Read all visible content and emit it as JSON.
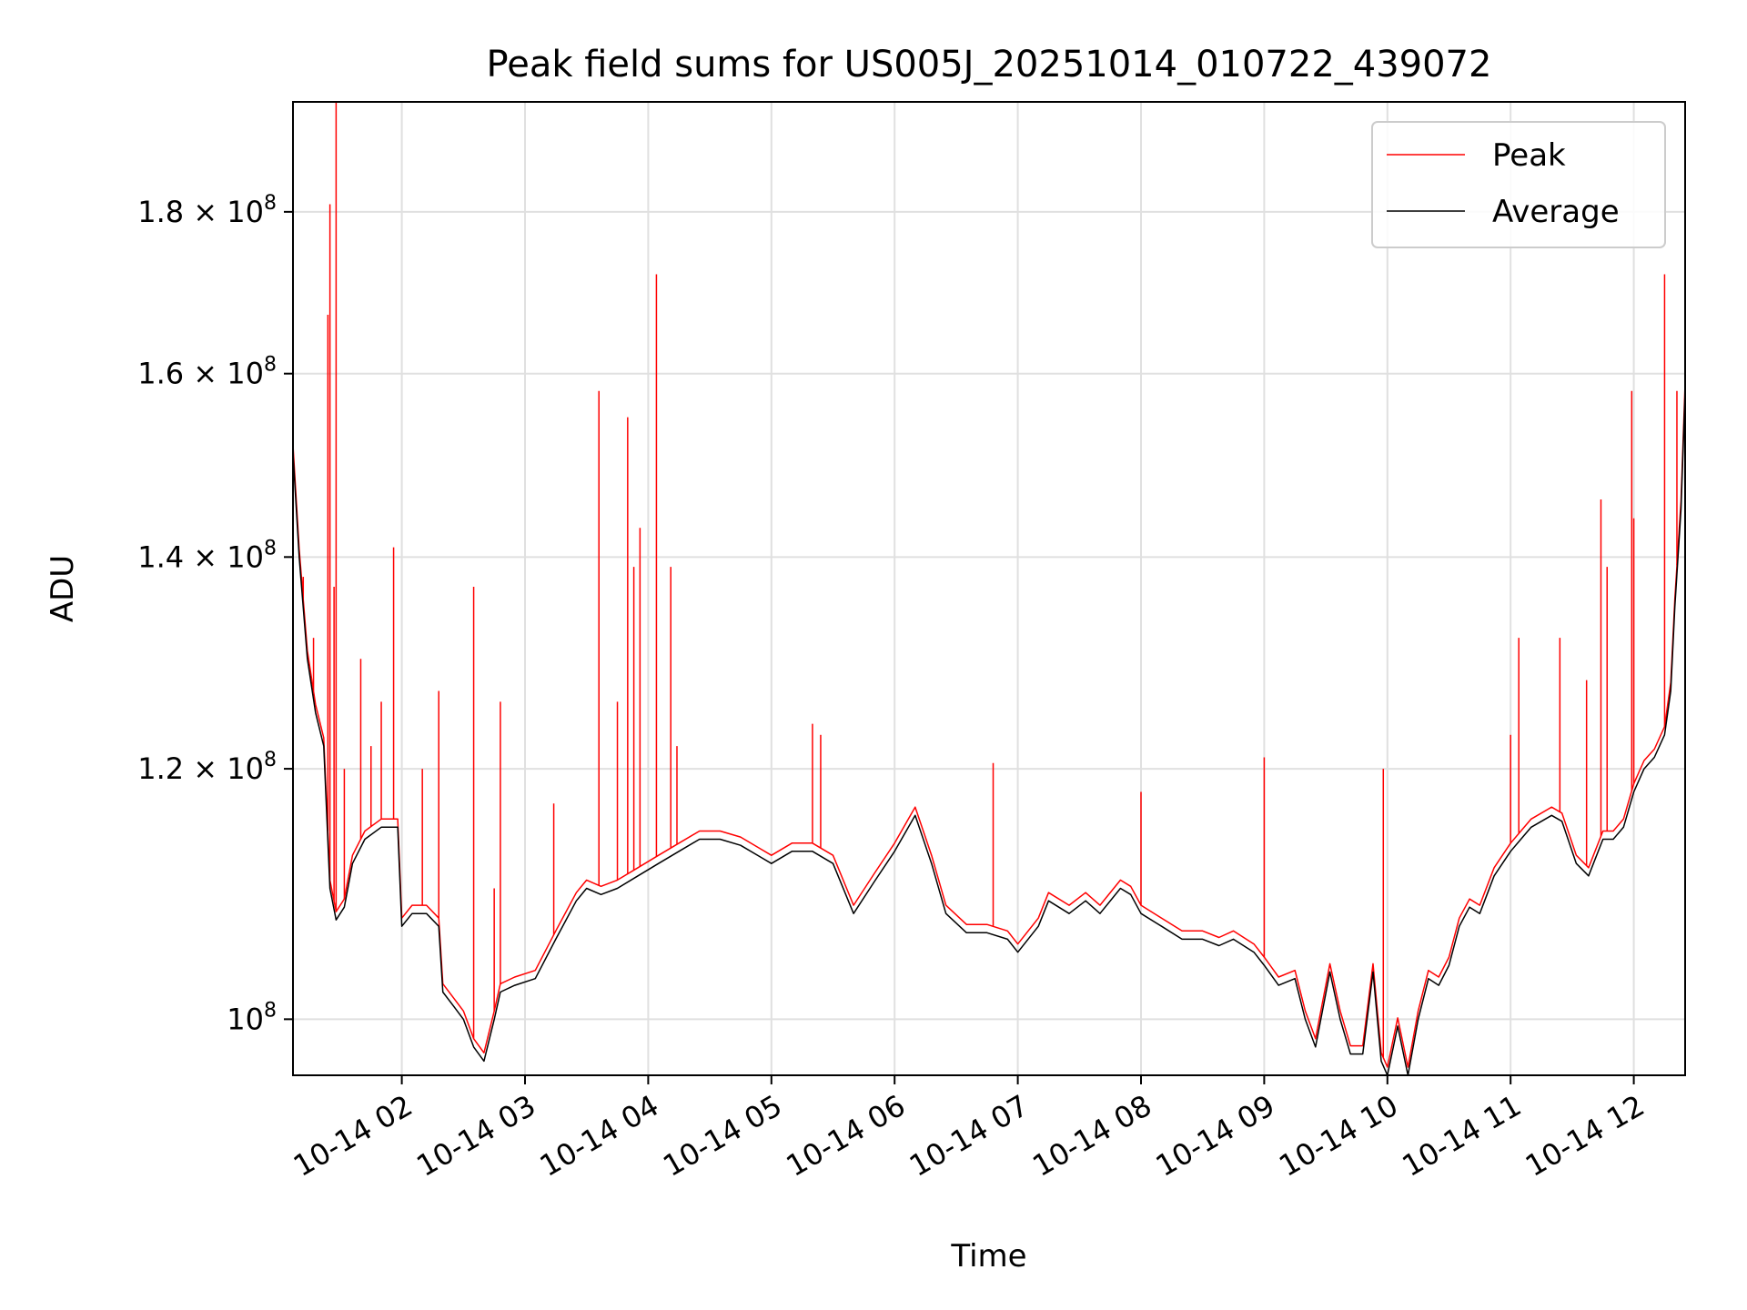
{
  "chart_data": {
    "type": "line",
    "title": "Peak field sums for US005J_20251014_010722_439072",
    "xlabel": "Time",
    "ylabel": "ADU",
    "x_range": [
      "2025-10-14T01:07",
      "2025-10-14T12:25"
    ],
    "ylim": [
      96000000,
      195000000
    ],
    "y_scale": "log",
    "grid": true,
    "legend": "top-right",
    "x_ticks": [
      {
        "t": "2025-10-14T02:00",
        "label": "10-14 02"
      },
      {
        "t": "2025-10-14T03:00",
        "label": "10-14 03"
      },
      {
        "t": "2025-10-14T04:00",
        "label": "10-14 04"
      },
      {
        "t": "2025-10-14T05:00",
        "label": "10-14 05"
      },
      {
        "t": "2025-10-14T06:00",
        "label": "10-14 06"
      },
      {
        "t": "2025-10-14T07:00",
        "label": "10-14 07"
      },
      {
        "t": "2025-10-14T08:00",
        "label": "10-14 08"
      },
      {
        "t": "2025-10-14T09:00",
        "label": "10-14 09"
      },
      {
        "t": "2025-10-14T10:00",
        "label": "10-14 10"
      },
      {
        "t": "2025-10-14T11:00",
        "label": "10-14 11"
      },
      {
        "t": "2025-10-14T12:00",
        "label": "10-14 12"
      }
    ],
    "y_ticks": [
      {
        "v": 100000000,
        "base": "10",
        "exp": "8",
        "mant": ""
      },
      {
        "v": 120000000,
        "base": "10",
        "exp": "8",
        "mant": "1.2"
      },
      {
        "v": 140000000,
        "base": "10",
        "exp": "8",
        "mant": "1.4"
      },
      {
        "v": 160000000,
        "base": "10",
        "exp": "8",
        "mant": "1.6"
      },
      {
        "v": 180000000,
        "base": "10",
        "exp": "8",
        "mant": "1.8"
      }
    ],
    "series": [
      {
        "name": "Average",
        "color": "#000000",
        "points": [
          [
            "2025-10-14T01:07",
            151000000.0
          ],
          [
            "2025-10-14T01:10",
            140000000.0
          ],
          [
            "2025-10-14T01:14",
            130000000.0
          ],
          [
            "2025-10-14T01:18",
            125000000.0
          ],
          [
            "2025-10-14T01:22",
            122000000.0
          ],
          [
            "2025-10-14T01:25",
            110000000.0
          ],
          [
            "2025-10-14T01:28",
            107500000.0
          ],
          [
            "2025-10-14T01:32",
            108500000.0
          ],
          [
            "2025-10-14T01:36",
            112000000.0
          ],
          [
            "2025-10-14T01:42",
            114000000.0
          ],
          [
            "2025-10-14T01:50",
            115000000.0
          ],
          [
            "2025-10-14T01:55",
            115000000.0
          ],
          [
            "2025-10-14T01:58",
            115000000.0
          ],
          [
            "2025-10-14T02:00",
            107000000.0
          ],
          [
            "2025-10-14T02:05",
            108000000.0
          ],
          [
            "2025-10-14T02:12",
            108000000.0
          ],
          [
            "2025-10-14T02:18",
            107000000.0
          ],
          [
            "2025-10-14T02:20",
            102000000.0
          ],
          [
            "2025-10-14T02:25",
            101000000.0
          ],
          [
            "2025-10-14T02:30",
            100000000.0
          ],
          [
            "2025-10-14T02:35",
            98000000.0
          ],
          [
            "2025-10-14T02:40",
            97000000.0
          ],
          [
            "2025-10-14T02:45",
            100000000.0
          ],
          [
            "2025-10-14T02:48",
            102000000.0
          ],
          [
            "2025-10-14T02:55",
            102500000.0
          ],
          [
            "2025-10-14T03:05",
            103000000.0
          ],
          [
            "2025-10-14T03:15",
            106000000.0
          ],
          [
            "2025-10-14T03:25",
            109000000.0
          ],
          [
            "2025-10-14T03:30",
            110000000.0
          ],
          [
            "2025-10-14T03:37",
            109500000.0
          ],
          [
            "2025-10-14T03:45",
            110000000.0
          ],
          [
            "2025-10-14T03:55",
            111000000.0
          ],
          [
            "2025-10-14T04:05",
            112000000.0
          ],
          [
            "2025-10-14T04:15",
            113000000.0
          ],
          [
            "2025-10-14T04:25",
            114000000.0
          ],
          [
            "2025-10-14T04:35",
            114000000.0
          ],
          [
            "2025-10-14T04:45",
            113500000.0
          ],
          [
            "2025-10-14T04:55",
            112500000.0
          ],
          [
            "2025-10-14T05:00",
            112000000.0
          ],
          [
            "2025-10-14T05:10",
            113000000.0
          ],
          [
            "2025-10-14T05:20",
            113000000.0
          ],
          [
            "2025-10-14T05:30",
            112000000.0
          ],
          [
            "2025-10-14T05:40",
            108000000.0
          ],
          [
            "2025-10-14T05:50",
            110500000.0
          ],
          [
            "2025-10-14T06:00",
            113000000.0
          ],
          [
            "2025-10-14T06:10",
            116000000.0
          ],
          [
            "2025-10-14T06:18",
            112000000.0
          ],
          [
            "2025-10-14T06:25",
            108000000.0
          ],
          [
            "2025-10-14T06:35",
            106500000.0
          ],
          [
            "2025-10-14T06:45",
            106500000.0
          ],
          [
            "2025-10-14T06:55",
            106000000.0
          ],
          [
            "2025-10-14T07:00",
            105000000.0
          ],
          [
            "2025-10-14T07:10",
            107000000.0
          ],
          [
            "2025-10-14T07:15",
            109000000.0
          ],
          [
            "2025-10-14T07:25",
            108000000.0
          ],
          [
            "2025-10-14T07:33",
            109000000.0
          ],
          [
            "2025-10-14T07:40",
            108000000.0
          ],
          [
            "2025-10-14T07:50",
            110000000.0
          ],
          [
            "2025-10-14T07:55",
            109500000.0
          ],
          [
            "2025-10-14T08:00",
            108000000.0
          ],
          [
            "2025-10-14T08:10",
            107000000.0
          ],
          [
            "2025-10-14T08:20",
            106000000.0
          ],
          [
            "2025-10-14T08:30",
            106000000.0
          ],
          [
            "2025-10-14T08:38",
            105500000.0
          ],
          [
            "2025-10-14T08:45",
            106000000.0
          ],
          [
            "2025-10-14T08:55",
            105000000.0
          ],
          [
            "2025-10-14T09:00",
            104000000.0
          ],
          [
            "2025-10-14T09:07",
            102500000.0
          ],
          [
            "2025-10-14T09:15",
            103000000.0
          ],
          [
            "2025-10-14T09:20",
            100000000.0
          ],
          [
            "2025-10-14T09:25",
            98000000.0
          ],
          [
            "2025-10-14T09:32",
            103500000.0
          ],
          [
            "2025-10-14T09:37",
            100000000.0
          ],
          [
            "2025-10-14T09:42",
            97500000.0
          ],
          [
            "2025-10-14T09:48",
            97500000.0
          ],
          [
            "2025-10-14T09:53",
            103500000.0
          ],
          [
            "2025-10-14T09:57",
            97000000.0
          ],
          [
            "2025-10-14T10:00",
            96000000.0
          ],
          [
            "2025-10-14T10:05",
            99500000.0
          ],
          [
            "2025-10-14T10:10",
            96000000.0
          ],
          [
            "2025-10-14T10:15",
            100000000.0
          ],
          [
            "2025-10-14T10:20",
            103000000.0
          ],
          [
            "2025-10-14T10:25",
            102500000.0
          ],
          [
            "2025-10-14T10:30",
            104000000.0
          ],
          [
            "2025-10-14T10:35",
            107000000.0
          ],
          [
            "2025-10-14T10:40",
            108500000.0
          ],
          [
            "2025-10-14T10:45",
            108000000.0
          ],
          [
            "2025-10-14T10:52",
            111000000.0
          ],
          [
            "2025-10-14T11:00",
            113000000.0
          ],
          [
            "2025-10-14T11:05",
            114000000.0
          ],
          [
            "2025-10-14T11:10",
            115000000.0
          ],
          [
            "2025-10-14T11:20",
            116000000.0
          ],
          [
            "2025-10-14T11:25",
            115500000.0
          ],
          [
            "2025-10-14T11:32",
            112000000.0
          ],
          [
            "2025-10-14T11:38",
            111000000.0
          ],
          [
            "2025-10-14T11:45",
            114000000.0
          ],
          [
            "2025-10-14T11:50",
            114000000.0
          ],
          [
            "2025-10-14T11:55",
            115000000.0
          ],
          [
            "2025-10-14T12:00",
            118000000.0
          ],
          [
            "2025-10-14T12:05",
            120000000.0
          ],
          [
            "2025-10-14T12:10",
            121000000.0
          ],
          [
            "2025-10-14T12:15",
            123000000.0
          ],
          [
            "2025-10-14T12:18",
            127000000.0
          ],
          [
            "2025-10-14T12:20",
            135000000.0
          ],
          [
            "2025-10-14T12:23",
            145000000.0
          ],
          [
            "2025-10-14T12:25",
            158000000.0
          ]
        ]
      },
      {
        "name": "Peak",
        "color": "#ff0000",
        "offset_ratio": 1.006,
        "spikes": [
          [
            "2025-10-14T01:12",
            138000000.0
          ],
          [
            "2025-10-14T01:17",
            132000000.0
          ],
          [
            "2025-10-14T01:24",
            167000000.0
          ],
          [
            "2025-10-14T01:25",
            181000000.0
          ],
          [
            "2025-10-14T01:27",
            137000000.0
          ],
          [
            "2025-10-14T01:28",
            195000000.0
          ],
          [
            "2025-10-14T01:32",
            120000000.0
          ],
          [
            "2025-10-14T01:40",
            130000000.0
          ],
          [
            "2025-10-14T01:45",
            122000000.0
          ],
          [
            "2025-10-14T01:50",
            126000000.0
          ],
          [
            "2025-10-14T01:56",
            141000000.0
          ],
          [
            "2025-10-14T02:10",
            120000000.0
          ],
          [
            "2025-10-14T02:18",
            127000000.0
          ],
          [
            "2025-10-14T02:35",
            137000000.0
          ],
          [
            "2025-10-14T02:45",
            110000000.0
          ],
          [
            "2025-10-14T02:48",
            126000000.0
          ],
          [
            "2025-10-14T03:14",
            117000000.0
          ],
          [
            "2025-10-14T03:36",
            158000000.0
          ],
          [
            "2025-10-14T03:45",
            126000000.0
          ],
          [
            "2025-10-14T03:50",
            155000000.0
          ],
          [
            "2025-10-14T03:53",
            139000000.0
          ],
          [
            "2025-10-14T03:56",
            143000000.0
          ],
          [
            "2025-10-14T04:04",
            172000000.0
          ],
          [
            "2025-10-14T04:11",
            139000000.0
          ],
          [
            "2025-10-14T04:14",
            122000000.0
          ],
          [
            "2025-10-14T05:20",
            124000000.0
          ],
          [
            "2025-10-14T05:24",
            123000000.0
          ],
          [
            "2025-10-14T06:48",
            120500000.0
          ],
          [
            "2025-10-14T08:00",
            118000000.0
          ],
          [
            "2025-10-14T09:00",
            121000000.0
          ],
          [
            "2025-10-14T09:58",
            120000000.0
          ],
          [
            "2025-10-14T11:00",
            123000000.0
          ],
          [
            "2025-10-14T11:04",
            132000000.0
          ],
          [
            "2025-10-14T11:24",
            132000000.0
          ],
          [
            "2025-10-14T11:37",
            128000000.0
          ],
          [
            "2025-10-14T11:44",
            146000000.0
          ],
          [
            "2025-10-14T11:47",
            139000000.0
          ],
          [
            "2025-10-14T11:59",
            158000000.0
          ],
          [
            "2025-10-14T12:00",
            144000000.0
          ],
          [
            "2025-10-14T12:15",
            172000000.0
          ],
          [
            "2025-10-14T12:21",
            158000000.0
          ],
          [
            "2025-10-14T12:25",
            163000000.0
          ]
        ]
      }
    ]
  }
}
